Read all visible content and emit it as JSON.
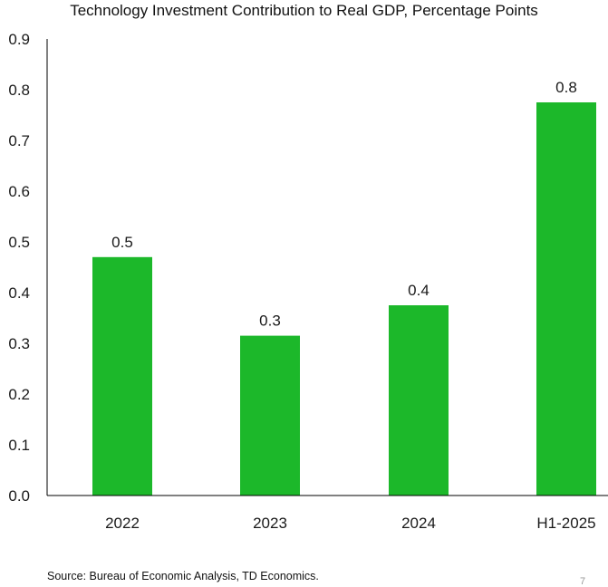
{
  "chart_data": {
    "type": "bar",
    "title": "Technology Investment Contribution to Real GDP,  Percentage Points",
    "categories": [
      "2022",
      "2023",
      "2024",
      "H1-2025"
    ],
    "values": [
      0.47,
      0.315,
      0.375,
      0.775
    ],
    "data_labels": [
      "0.5",
      "0.3",
      "0.4",
      "0.8"
    ],
    "ylim": [
      0,
      0.9
    ],
    "yticks": [
      "0.0",
      "0.1",
      "0.2",
      "0.3",
      "0.4",
      "0.5",
      "0.6",
      "0.7",
      "0.8",
      "0.9"
    ],
    "xlabel": "",
    "ylabel": "",
    "grid": false,
    "bar_color": "#1cb82a"
  },
  "footer": {
    "source": "Source: Bureau of Economic Analysis, TD Economics.",
    "page_number": "7"
  }
}
